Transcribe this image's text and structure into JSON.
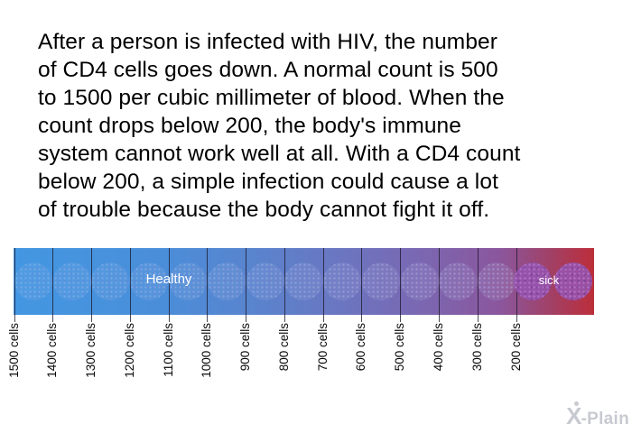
{
  "paragraph": {
    "lines": [
      "After a person is infected with HIV, the number",
      "of CD4 cells goes down. A normal count is 500",
      "to 1500 per cubic millimeter of blood. When the",
      "count drops below 200, the body's immune",
      "system cannot work well at all. With a CD4 count",
      "below 200, a simple infection could cause a lot",
      "of trouble because the body cannot fight it off."
    ]
  },
  "scale": {
    "type": "gradient-scale",
    "healthy_label": "Healthy",
    "sick_label": "sick",
    "tick_labels": [
      "1500 cells",
      "1400 cells",
      "1300 cells",
      "1200 cells",
      "1100 cells",
      "1000 cells",
      "900 cells",
      "800 cells",
      "700 cells",
      "600 cells",
      "500 cells",
      "400 cells",
      "300 cells",
      "200 cells"
    ],
    "colors": {
      "healthy_end": "#4397e2",
      "middle": "#6d74bf",
      "sick_end": "#bc2e3a"
    }
  },
  "watermark": {
    "logo_letter": "X",
    "text": "-Plain"
  }
}
